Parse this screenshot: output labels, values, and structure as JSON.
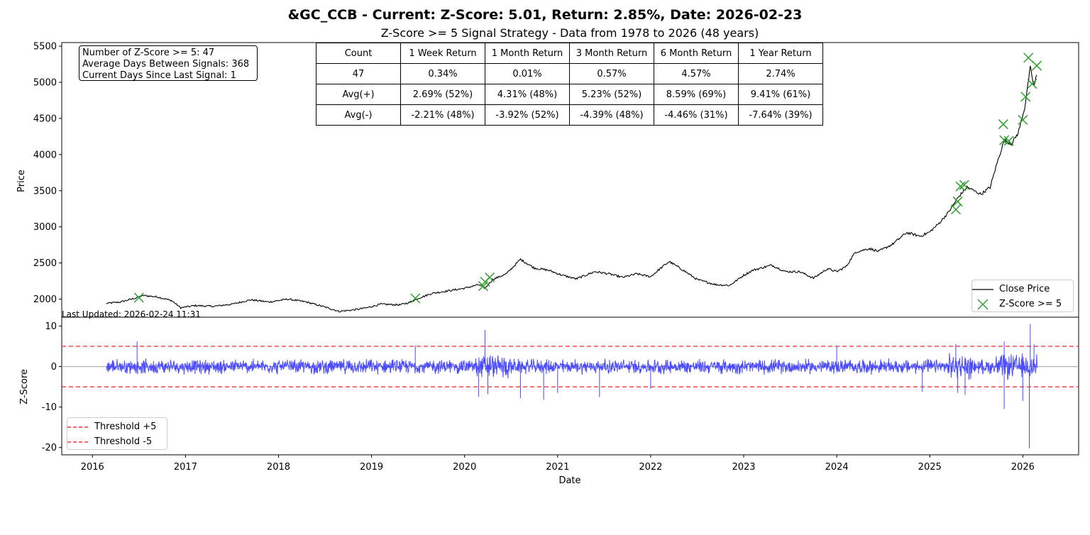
{
  "title": "&GC_CCB - Current: Z-Score: 5.01, Return: 2.85%, Date: 2026-02-23",
  "subtitle": "Z-Score >= 5 Signal Strategy - Data from 1978 to 2026 (48 years)",
  "info_box": {
    "line1": "Number of Z-Score >= 5: 47",
    "line2": "Average Days Between Signals: 368",
    "line3": "Current Days Since Last Signal: 1"
  },
  "stats_table": {
    "header": [
      "Count",
      "1 Week Return",
      "1 Month Return",
      "3 Month Return",
      "6 Month Return",
      "1 Year Return"
    ],
    "rows": [
      [
        "47",
        "0.34%",
        "0.01%",
        "0.57%",
        "4.57%",
        "2.74%"
      ],
      [
        "Avg(+)",
        "2.69% (52%)",
        "4.31% (48%)",
        "5.23% (52%)",
        "8.59% (69%)",
        "9.41% (61%)"
      ],
      [
        "Avg(-)",
        "-2.21% (48%)",
        "-3.92% (52%)",
        "-4.39% (48%)",
        "-4.46% (31%)",
        "-7.64% (39%)"
      ]
    ]
  },
  "last_updated": "Last Updated: 2026-02-24 11:31",
  "colors": {
    "price": "#000000",
    "signal": "#2ca02c",
    "zscore": "#4a4aff",
    "threshold": "#ff3333",
    "zero": "#b0b0b0"
  },
  "chart_data": [
    {
      "type": "line",
      "panel": "price",
      "ylabel": "Price",
      "ylim": [
        1750,
        5550
      ],
      "yticks": [
        2000,
        2500,
        3000,
        3500,
        4000,
        4500,
        5000,
        5500
      ],
      "xlim": [
        2015.67,
        2026.6
      ],
      "series": [
        {
          "name": "Close Price",
          "x": [
            2016.15,
            2016.3,
            2016.45,
            2016.55,
            2016.7,
            2016.85,
            2016.95,
            2017.1,
            2017.3,
            2017.5,
            2017.7,
            2017.9,
            2018.1,
            2018.3,
            2018.5,
            2018.65,
            2018.8,
            2018.95,
            2019.1,
            2019.3,
            2019.4,
            2019.5,
            2019.65,
            2019.8,
            2020.0,
            2020.15,
            2020.22,
            2020.3,
            2020.45,
            2020.6,
            2020.75,
            2020.9,
            2021.05,
            2021.2,
            2021.4,
            2021.55,
            2021.7,
            2021.85,
            2022.0,
            2022.1,
            2022.2,
            2022.35,
            2022.5,
            2022.7,
            2022.85,
            2023.0,
            2023.1,
            2023.3,
            2023.45,
            2023.6,
            2023.75,
            2023.9,
            2024.0,
            2024.1,
            2024.2,
            2024.35,
            2024.45,
            2024.6,
            2024.75,
            2024.9,
            2025.0,
            2025.1,
            2025.2,
            2025.3,
            2025.4,
            2025.55,
            2025.65,
            2025.72,
            2025.8,
            2025.88,
            2025.95,
            2026.02,
            2026.08,
            2026.12,
            2026.15
          ],
          "y": [
            1940,
            1960,
            2010,
            2050,
            2030,
            1980,
            1880,
            1910,
            1900,
            1930,
            1990,
            1960,
            2000,
            1960,
            1890,
            1830,
            1850,
            1880,
            1930,
            1920,
            1950,
            2010,
            2080,
            2110,
            2150,
            2200,
            2150,
            2270,
            2350,
            2550,
            2430,
            2400,
            2330,
            2280,
            2380,
            2350,
            2300,
            2350,
            2310,
            2420,
            2520,
            2400,
            2270,
            2200,
            2190,
            2330,
            2400,
            2470,
            2380,
            2380,
            2290,
            2420,
            2380,
            2450,
            2650,
            2700,
            2660,
            2760,
            2920,
            2870,
            2930,
            3050,
            3200,
            3400,
            3550,
            3450,
            3550,
            3870,
            4200,
            4150,
            4300,
            4650,
            5200,
            4950,
            5100
          ]
        },
        {
          "name": "Z-Score >= 5",
          "marker": "x",
          "x": [
            2016.5,
            2019.47,
            2020.2,
            2020.22,
            2020.27,
            2025.28,
            2025.3,
            2025.33,
            2025.37,
            2025.79,
            2025.8,
            2025.85,
            2026.0,
            2026.03,
            2026.06,
            2026.1,
            2026.15
          ],
          "y": [
            2020,
            2010,
            2180,
            2240,
            2300,
            3240,
            3350,
            3560,
            3580,
            4420,
            4200,
            4190,
            4480,
            4800,
            5340,
            4980,
            5230
          ]
        }
      ],
      "legend": {
        "position": "lower-right",
        "entries": [
          "Close Price",
          "Z-Score >= 5"
        ]
      }
    },
    {
      "type": "line",
      "panel": "zscore",
      "ylabel": "Z-Score",
      "xlabel": "Date",
      "ylim": [
        -21.8,
        12.2
      ],
      "yticks": [
        10,
        0,
        -10,
        -20
      ],
      "xticks": [
        2016,
        2017,
        2018,
        2019,
        2020,
        2021,
        2022,
        2023,
        2024,
        2025,
        2026
      ],
      "xlim": [
        2015.67,
        2026.6
      ],
      "x_start": 2016.15,
      "x_end": 2026.15,
      "thresholds": [
        5,
        -5
      ],
      "spikes": [
        {
          "x": 2016.48,
          "y": 6.2
        },
        {
          "x": 2019.47,
          "y": 5.2
        },
        {
          "x": 2020.15,
          "y": -7.5
        },
        {
          "x": 2020.22,
          "y": 9.0
        },
        {
          "x": 2020.25,
          "y": -6.8
        },
        {
          "x": 2020.6,
          "y": -7.8
        },
        {
          "x": 2020.85,
          "y": -8.2
        },
        {
          "x": 2021.0,
          "y": -6.5
        },
        {
          "x": 2021.45,
          "y": -7.5
        },
        {
          "x": 2022.0,
          "y": -5.5
        },
        {
          "x": 2024.0,
          "y": 5.0
        },
        {
          "x": 2024.92,
          "y": -6.2
        },
        {
          "x": 2025.28,
          "y": 5.6
        },
        {
          "x": 2025.3,
          "y": -6.5
        },
        {
          "x": 2025.38,
          "y": -7.0
        },
        {
          "x": 2025.8,
          "y": -10.5
        },
        {
          "x": 2025.8,
          "y": 6.2
        },
        {
          "x": 2026.0,
          "y": -8.5
        },
        {
          "x": 2026.07,
          "y": -20.2
        },
        {
          "x": 2026.08,
          "y": 10.5
        },
        {
          "x": 2026.12,
          "y": 5.5
        }
      ],
      "legend": {
        "position": "lower-left",
        "entries": [
          "Threshold +5",
          "Threshold -5"
        ]
      }
    }
  ]
}
